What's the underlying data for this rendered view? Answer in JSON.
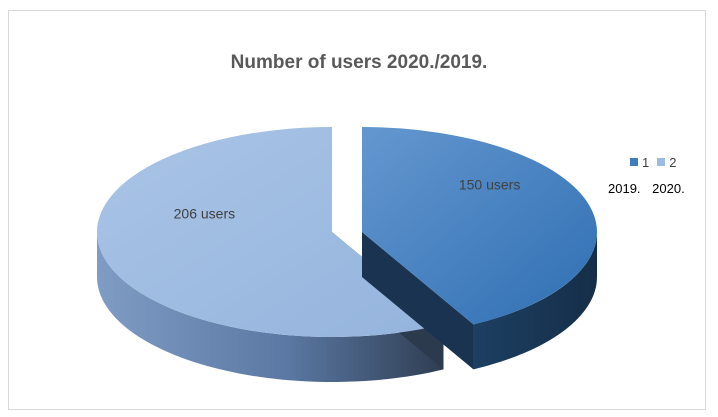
{
  "chart_data": {
    "type": "pie",
    "title": "Number of users 2020./2019.",
    "categories": [
      "1",
      "2"
    ],
    "values": [
      150,
      206
    ],
    "data_labels": [
      "150 users",
      "206 users"
    ],
    "colors": [
      "#3f7dbe",
      "#9dbbe1"
    ],
    "legend": {
      "placement": "right",
      "entries": [
        "1",
        "2"
      ],
      "sub_labels": [
        "2019.",
        "2020."
      ]
    },
    "style": "3d-exploded"
  }
}
